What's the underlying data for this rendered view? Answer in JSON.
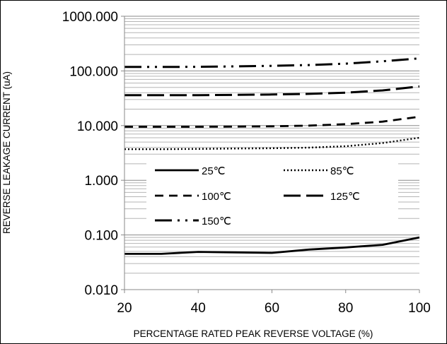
{
  "chart_data": {
    "type": "line",
    "title": "",
    "xlabel": "PERCENTAGE RATED PEAK REVERSE VOLTAGE (%)",
    "ylabel": "REVERSE LEAKAGE CURRENT (uA)",
    "yscale": "log",
    "xlim": [
      20,
      100
    ],
    "ylim": [
      0.01,
      1000
    ],
    "x_ticks": [
      "20",
      "40",
      "60",
      "80",
      "100"
    ],
    "y_ticks": [
      "0.010",
      "0.100",
      "1.000",
      "10.000",
      "100.000",
      "1000.000"
    ],
    "grid": "horizontal minor gridlines (log), major gridlines at each decade",
    "legend_position": "inside, lower-center",
    "series": [
      {
        "name": "25℃",
        "style": "solid",
        "x": [
          20,
          30,
          40,
          50,
          60,
          70,
          80,
          90,
          100
        ],
        "y": [
          0.045,
          0.045,
          0.049,
          0.048,
          0.047,
          0.054,
          0.059,
          0.066,
          0.09
        ]
      },
      {
        "name": "85℃",
        "style": "dotted",
        "x": [
          20,
          30,
          40,
          50,
          60,
          70,
          80,
          90,
          100
        ],
        "y": [
          3.7,
          3.7,
          3.75,
          3.8,
          3.85,
          3.95,
          4.2,
          4.8,
          6.0
        ]
      },
      {
        "name": "100℃",
        "style": "dash",
        "x": [
          20,
          30,
          40,
          50,
          60,
          70,
          80,
          90,
          100
        ],
        "y": [
          9.5,
          9.5,
          9.5,
          9.6,
          9.7,
          10.0,
          10.6,
          11.8,
          14.5
        ]
      },
      {
        "name": "125℃",
        "style": "longdash",
        "x": [
          20,
          30,
          40,
          50,
          60,
          70,
          80,
          90,
          100
        ],
        "y": [
          36,
          36,
          36,
          36.5,
          37,
          38,
          40,
          44,
          52
        ]
      },
      {
        "name": "150℃",
        "style": "dashdotdot",
        "x": [
          20,
          30,
          40,
          50,
          60,
          70,
          80,
          90,
          100
        ],
        "y": [
          118,
          118,
          119,
          121,
          124,
          128,
          136,
          150,
          170
        ]
      }
    ]
  }
}
